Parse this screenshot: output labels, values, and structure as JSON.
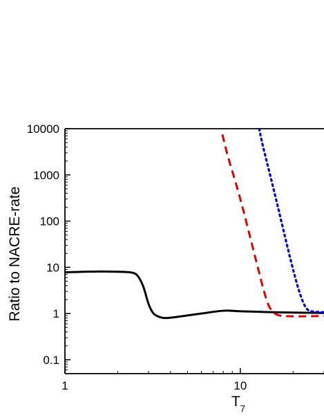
{
  "chart_data": {
    "type": "line",
    "title": "",
    "xlabel": "T",
    "xlabel_sub": "7",
    "ylabel": "Ratio to NACRE-rate",
    "x_scale": "log",
    "y_scale": "log",
    "xlim": [
      1,
      30
    ],
    "ylim": [
      0.05,
      10000
    ],
    "x_ticks": [
      {
        "value": 1,
        "label": "1"
      },
      {
        "value": 10,
        "label": "10"
      }
    ],
    "y_ticks": [
      {
        "value": 0.1,
        "label": "0.1"
      },
      {
        "value": 1,
        "label": "1"
      },
      {
        "value": 10,
        "label": "10"
      },
      {
        "value": 100,
        "label": "100"
      },
      {
        "value": 1000,
        "label": "1000"
      },
      {
        "value": 10000,
        "label": "10000"
      }
    ],
    "grid": false,
    "legend": "none",
    "series": [
      {
        "color": "#000000",
        "style": "solid",
        "x": [
          1,
          1.5,
          2.0,
          2.4,
          2.6,
          2.8,
          3.0,
          3.2,
          3.5,
          3.8,
          4.5,
          6,
          8,
          10,
          15,
          20,
          30
        ],
        "y": [
          7.8,
          8.1,
          8.0,
          7.7,
          6.5,
          3.8,
          1.6,
          1.0,
          0.83,
          0.8,
          0.86,
          1.0,
          1.15,
          1.12,
          1.07,
          1.05,
          1.03
        ]
      },
      {
        "color": "#e00000",
        "style": "dashed",
        "x": [
          7.9,
          8.5,
          9.5,
          10.5,
          11.5,
          12.5,
          13.5,
          14.5,
          15.5,
          16.5,
          18,
          20,
          23,
          27,
          30
        ],
        "y": [
          7500,
          2500,
          600,
          150,
          38,
          11,
          3.5,
          1.5,
          1.05,
          0.92,
          0.88,
          0.87,
          0.87,
          0.88,
          0.88
        ]
      },
      {
        "color": "#0000dd",
        "style": "dotted",
        "x": [
          12.8,
          13.5,
          15,
          16.5,
          18,
          19.5,
          21,
          22.5,
          24,
          26,
          28,
          30
        ],
        "y": [
          10000,
          4000,
          800,
          180,
          45,
          13,
          4.5,
          2.0,
          1.25,
          1.1,
          1.08,
          1.06
        ]
      }
    ]
  }
}
